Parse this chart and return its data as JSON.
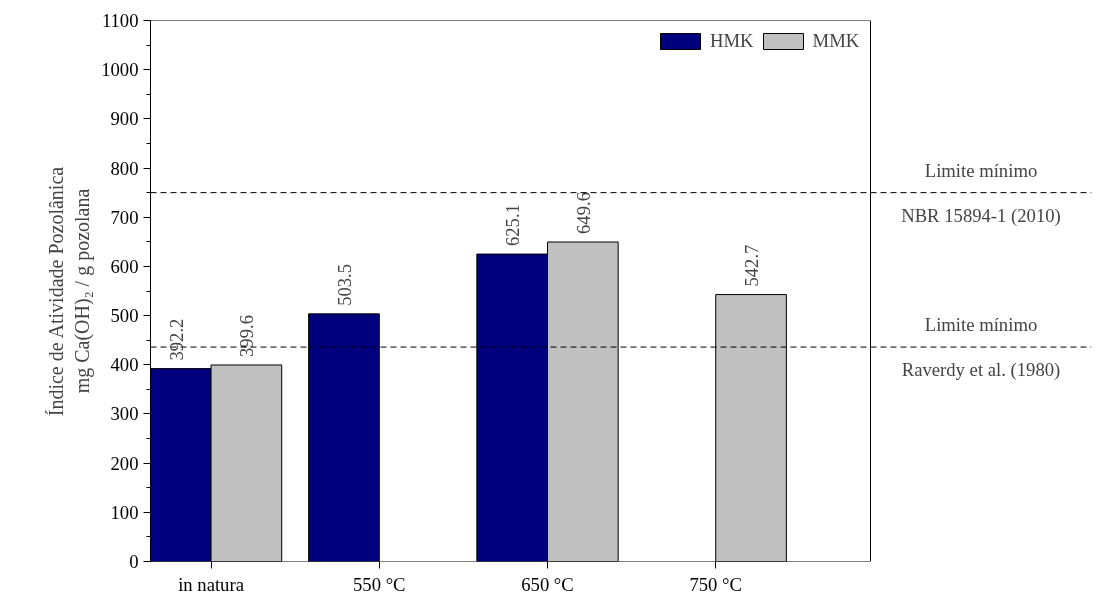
{
  "chart_data": {
    "type": "bar",
    "ylabel": "Índice de Atividade Pozolânica\nmg Ca(OH)₂ / g pozolana",
    "categories": [
      "in natura",
      "550 °C",
      "650 °C",
      "750 °C"
    ],
    "series": [
      {
        "name": "HMK",
        "color": "#00007f",
        "values": [
          392.2,
          503.5,
          625.1,
          null
        ]
      },
      {
        "name": "MMK",
        "color": "#c0c0c0",
        "values": [
          399.6,
          null,
          649.6,
          542.7
        ]
      }
    ],
    "ylim": [
      0,
      1100
    ],
    "yticks": [
      0,
      100,
      200,
      300,
      400,
      500,
      600,
      700,
      800,
      900,
      1000,
      1100
    ],
    "ref_lines": [
      {
        "axis": "y",
        "value": 750,
        "label": "Limite mínimo\nNBR 15894-1 (2010)",
        "line_style": "dashed",
        "color": "#000000"
      },
      {
        "axis": "y",
        "value": 436,
        "label": "Limite mínimo\nRaverdy et al. (1980)",
        "line_style": "dashed",
        "color": "#000000"
      }
    ],
    "data_labels": true,
    "legend": "top right",
    "grid": false
  }
}
